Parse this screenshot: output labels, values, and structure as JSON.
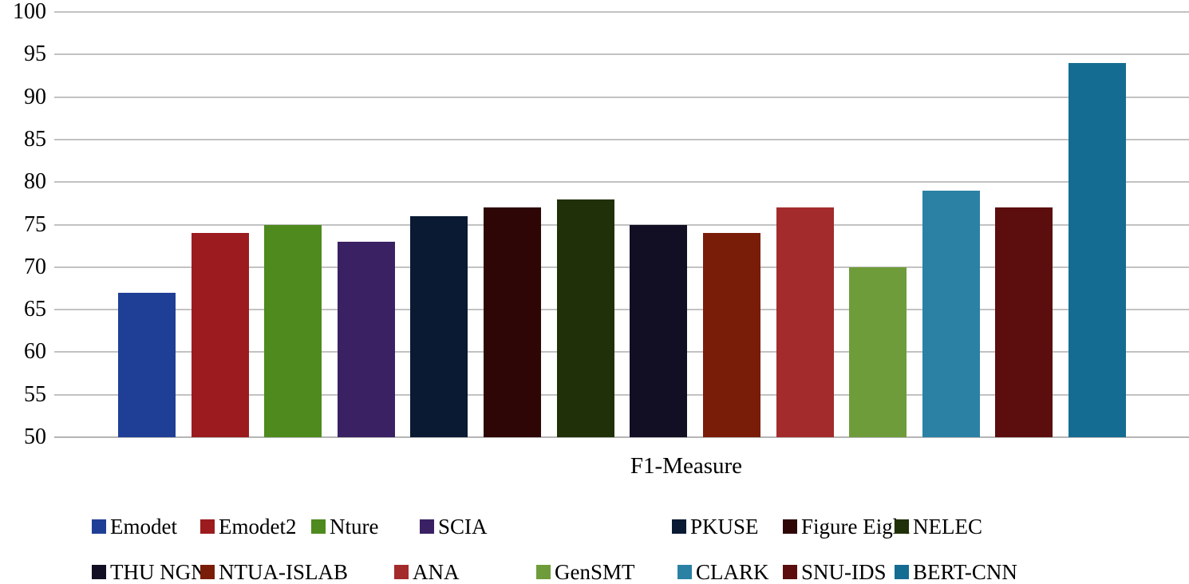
{
  "chart_data": {
    "type": "bar",
    "title": "",
    "xlabel": "F1-Measure",
    "ylabel": "",
    "ylim": [
      50,
      100
    ],
    "ytick_step": 5,
    "yticks": [
      100,
      95,
      90,
      85,
      80,
      75,
      70,
      65,
      60,
      55,
      50
    ],
    "grid": true,
    "legend_position": "bottom",
    "series": [
      {
        "name": "Emodet",
        "value": 67,
        "color": "#1f3f96"
      },
      {
        "name": "Emodet2",
        "value": 74,
        "color": "#9b1b1e"
      },
      {
        "name": "Nture",
        "value": 75,
        "color": "#4e8a1d"
      },
      {
        "name": "SCIA",
        "value": 73,
        "color": "#3a2163"
      },
      {
        "name": "PKUSE",
        "value": 76,
        "color": "#0a1a33"
      },
      {
        "name": "Figure Eight",
        "value": 77,
        "color": "#2e0606"
      },
      {
        "name": "NELEC",
        "value": 78,
        "color": "#203008"
      },
      {
        "name": "THU NGN",
        "value": 75,
        "color": "#120e24"
      },
      {
        "name": "NTUA-ISLAB",
        "value": 74,
        "color": "#7a1d08"
      },
      {
        "name": "ANA",
        "value": 77,
        "color": "#a32b2b"
      },
      {
        "name": "GenSMT",
        "value": 70,
        "color": "#6f9c3b"
      },
      {
        "name": "CLARK",
        "value": 79,
        "color": "#2a81a4"
      },
      {
        "name": "SNU-IDS",
        "value": 77,
        "color": "#5c0d0d"
      },
      {
        "name": "BERT-CNN",
        "value": 94,
        "color": "#156c92"
      }
    ]
  },
  "colors": {
    "background": "#ffffff",
    "gridline": "#c2c2c2",
    "axis_line": "#b5b5b5",
    "text": "#000000"
  }
}
